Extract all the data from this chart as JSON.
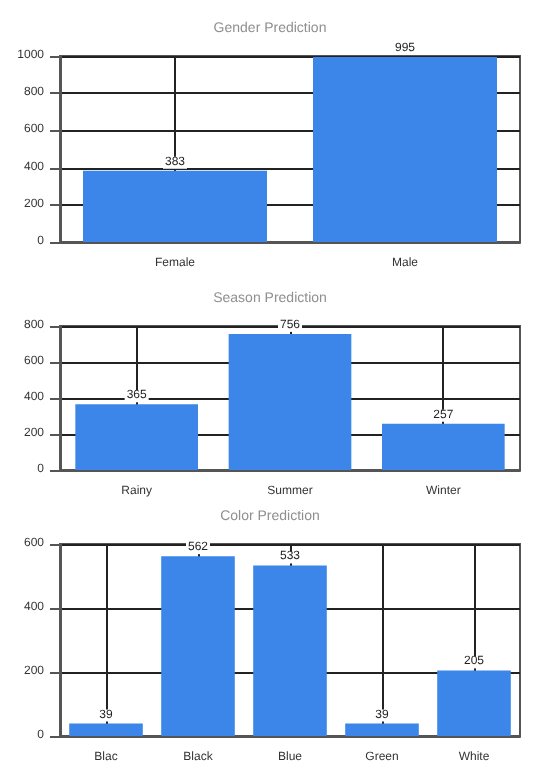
{
  "chart_data": [
    {
      "type": "bar",
      "title": "Gender Prediction",
      "categories": [
        "Female",
        "Male"
      ],
      "values": [
        383,
        995
      ],
      "color": "#3b86e8",
      "ylim": [
        0,
        1000
      ],
      "yticks": [
        0,
        200,
        400,
        600,
        800,
        1000
      ],
      "grid": true,
      "data_labels": true
    },
    {
      "type": "bar",
      "title": "Season Prediction",
      "categories": [
        "Rainy",
        "Summer",
        "Winter"
      ],
      "values": [
        365,
        756,
        257
      ],
      "color": "#3b86e8",
      "ylim": [
        0,
        800
      ],
      "yticks": [
        0,
        200,
        400,
        600,
        800
      ],
      "grid": true,
      "data_labels": true
    },
    {
      "type": "bar",
      "title": "Color Prediction",
      "categories": [
        "Blac",
        "Black",
        "Blue",
        "Green",
        "White"
      ],
      "values": [
        39,
        562,
        533,
        39,
        205
      ],
      "color": "#3b86e8",
      "ylim": [
        0,
        600
      ],
      "yticks": [
        0,
        200,
        400,
        600
      ],
      "grid": true,
      "data_labels": true
    }
  ]
}
